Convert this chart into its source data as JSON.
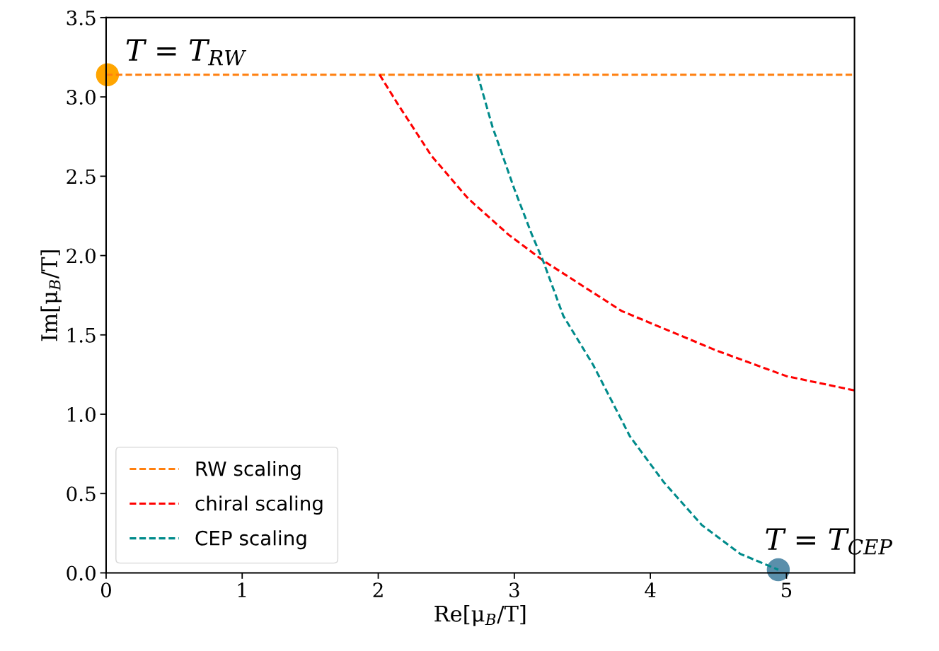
{
  "chart_data": {
    "type": "line",
    "xlabel": "Re[μ$_{B}$/T]",
    "ylabel": "Im[μ$_{B}$/T]",
    "xlim": [
      0,
      5.5
    ],
    "ylim": [
      0,
      3.5
    ],
    "xticks": [
      0,
      1,
      2,
      3,
      4,
      5
    ],
    "yticks": [
      {
        "value": 0,
        "label": "0.0"
      },
      0.5,
      {
        "value": 1,
        "label": "1.0"
      },
      1.5,
      {
        "value": 2,
        "label": "2.0"
      },
      2.5,
      {
        "value": 3,
        "label": "3.0"
      },
      3.5
    ],
    "grid": false,
    "legend": "bottom left",
    "line_style": "dashed",
    "marker": "none",
    "series": [
      {
        "name": "RW scaling",
        "color": "#ff7f0e",
        "x": [
          0,
          5.5
        ],
        "values": [
          3.14,
          3.14
        ]
      },
      {
        "name": "chiral scaling",
        "color": "#ff0000",
        "x": [
          2.01,
          2.14,
          2.39,
          2.66,
          2.96,
          3.21,
          3.79,
          4.49,
          5.0,
          5.5
        ],
        "values": [
          3.14,
          2.96,
          2.63,
          2.36,
          2.13,
          1.97,
          1.65,
          1.4,
          1.24,
          1.15
        ]
      },
      {
        "name": "CEP scaling",
        "color": "#008b8b",
        "x": [
          2.73,
          2.84,
          3.0,
          3.13,
          3.21,
          3.36,
          3.58,
          3.85,
          4.1,
          4.38,
          4.66,
          4.94
        ],
        "values": [
          3.14,
          2.81,
          2.42,
          2.13,
          1.97,
          1.62,
          1.31,
          0.86,
          0.57,
          0.3,
          0.12,
          0.02
        ]
      },
      {
        "type": "scatter",
        "marker": "circle",
        "color": "#ffa500",
        "x": [
          0.01
        ],
        "values": [
          3.14
        ]
      },
      {
        "type": "scatter",
        "marker": "circle",
        "color": "#5a8fab",
        "x": [
          4.94
        ],
        "values": [
          0.02
        ]
      }
    ],
    "annotations": [
      {
        "text": "T = T$_{RW}$",
        "x": 0.01,
        "y": 3.14
      },
      {
        "text": "T = T$_{CEP}$",
        "x": 4.94,
        "y": 0.02
      }
    ]
  }
}
